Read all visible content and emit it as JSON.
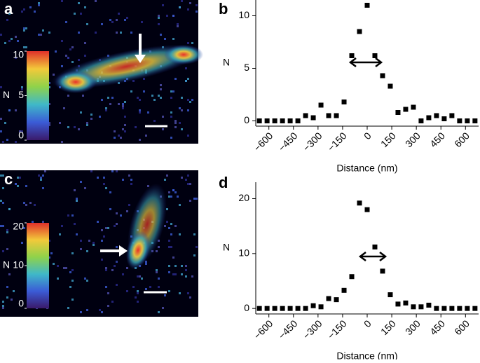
{
  "chart_data": [
    {
      "type": "image",
      "panel": "a",
      "colorbar": {
        "label": "N",
        "lim": [
          0,
          10
        ],
        "ticks": [
          0,
          5,
          10
        ]
      }
    },
    {
      "type": "scatter",
      "panel": "b",
      "xlabel": "Distance (nm)",
      "ylabel": "N",
      "x": [
        -658,
        -611,
        -564,
        -517,
        -470,
        -423,
        -376,
        -329,
        -282,
        -235,
        -188,
        -141,
        -94,
        -47,
        0,
        47,
        94,
        141,
        188,
        235,
        282,
        329,
        376,
        423,
        470,
        517,
        564,
        611,
        658
      ],
      "series": [
        {
          "color": "#000000",
          "values": [
            0,
            0,
            0,
            0,
            0,
            0,
            0.5,
            0.3,
            1.5,
            0.5,
            0.5,
            1.8,
            6.2,
            8.5,
            11,
            6.2,
            4.3,
            3.3,
            0.8,
            1.1,
            1.3,
            0,
            0.3,
            0.5,
            0.2,
            0.5,
            0,
            0,
            0
          ]
        }
      ],
      "xlim": [
        -680,
        680
      ],
      "ylim": [
        -0.5,
        11.5
      ],
      "xticks": [
        {
          "value": -600,
          "label": "−600"
        },
        {
          "value": -450,
          "label": "−450"
        },
        {
          "value": -300,
          "label": "−300"
        },
        {
          "value": -150,
          "label": "−150"
        },
        0,
        150,
        300,
        450,
        600
      ],
      "yticks": [
        0,
        5,
        10
      ]
    },
    {
      "type": "image",
      "panel": "c",
      "colorbar": {
        "label": "N",
        "lim": [
          0,
          20
        ],
        "ticks": [
          0,
          10,
          20
        ]
      }
    },
    {
      "type": "scatter",
      "panel": "d",
      "xlabel": "Distance (nm)",
      "ylabel": "N",
      "x": [
        -658,
        -611,
        -564,
        -517,
        -470,
        -423,
        -376,
        -329,
        -282,
        -235,
        -188,
        -141,
        -94,
        -47,
        0,
        47,
        94,
        141,
        188,
        235,
        282,
        329,
        376,
        423,
        470,
        517,
        564,
        611,
        658
      ],
      "series": [
        {
          "color": "#000000",
          "values": [
            0,
            0,
            0,
            0,
            0,
            0,
            0,
            0.5,
            0.3,
            1.8,
            1.6,
            3.3,
            5.8,
            19.2,
            18,
            11.2,
            6.8,
            2.5,
            0.8,
            1,
            0.3,
            0.3,
            0.6,
            0,
            0,
            0,
            0,
            0,
            0
          ]
        }
      ],
      "xlim": [
        -680,
        680
      ],
      "ylim": [
        -1,
        23
      ],
      "xticks": [
        {
          "value": -600,
          "label": "−600"
        },
        {
          "value": -450,
          "label": "−450"
        },
        {
          "value": -300,
          "label": "−300"
        },
        {
          "value": -150,
          "label": "−150"
        },
        0,
        150,
        300,
        450,
        600
      ],
      "yticks": [
        0,
        10,
        20
      ]
    }
  ]
}
